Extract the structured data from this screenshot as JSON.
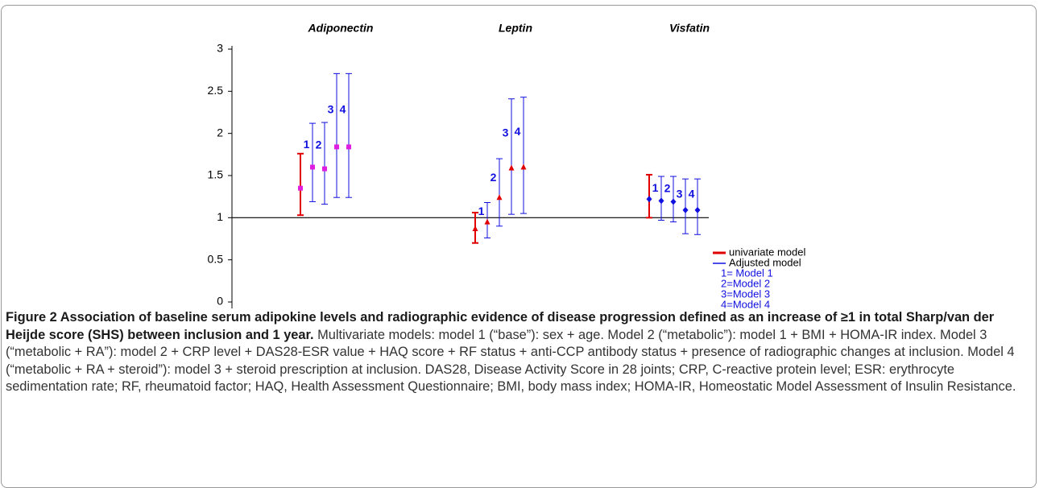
{
  "chart_data": {
    "type": "errorbar",
    "categories": [
      "Adiponectin",
      "Leptin",
      "Visfatin"
    ],
    "markers": [
      "square",
      "triangle",
      "diamond"
    ],
    "marker_colors": [
      "#e01ee0",
      "#e00000",
      "#1010e0"
    ],
    "series": [
      {
        "name": "univariate model",
        "color": "#e00000",
        "values": [
          1.35,
          0.87,
          1.22
        ],
        "lower": [
          1.03,
          0.7,
          1.0
        ],
        "upper": [
          1.76,
          1.06,
          1.51
        ]
      },
      {
        "name": "1= Model 1",
        "tag": "1",
        "color": "#1010e0",
        "values": [
          1.6,
          0.95,
          1.2
        ],
        "lower": [
          1.19,
          0.76,
          0.97
        ],
        "upper": [
          2.12,
          1.18,
          1.49
        ]
      },
      {
        "name": "2=Model 2",
        "tag": "2",
        "color": "#1010e0",
        "values": [
          1.58,
          1.24,
          1.19
        ],
        "lower": [
          1.16,
          0.9,
          0.95
        ],
        "upper": [
          2.13,
          1.7,
          1.49
        ]
      },
      {
        "name": "3=Model 3",
        "tag": "3",
        "color": "#1010e0",
        "values": [
          1.84,
          1.59,
          1.09
        ],
        "lower": [
          1.24,
          1.04,
          0.81
        ],
        "upper": [
          2.71,
          2.41,
          1.46
        ]
      },
      {
        "name": "4=Model 4",
        "tag": "4",
        "color": "#1010e0",
        "values": [
          1.84,
          1.6,
          1.09
        ],
        "lower": [
          1.24,
          1.05,
          0.8
        ],
        "upper": [
          2.71,
          2.43,
          1.46
        ]
      }
    ],
    "adjusted_legend": {
      "name": "Adjusted model",
      "color": "#1010e0"
    },
    "reference_line": 1,
    "ylim": [
      0,
      3
    ],
    "yticks": [
      0,
      0.5,
      1,
      1.5,
      2,
      2.5,
      3
    ]
  },
  "caption": {
    "title": "Figure 2 Association of baseline serum adipokine levels and radiographic evidence of disease progression defined as an increase of ≥1 in total Sharp/van der Heijde score (SHS) between inclusion and 1 year.",
    "text": "Multivariate models: model 1 (“base”): sex + age. Model 2 (“metabolic”): model 1 + BMI + HOMA-IR index. Model 3 (“metabolic + RA”): model 2 + CRP level + DAS28-ESR value + HAQ score + RF status + anti-CCP antibody status + presence of radiographic changes at inclusion. Model 4 (“metabolic + RA + steroid”): model 3 + steroid prescription at inclusion. DAS28, Disease Activity Score in 28 joints; CRP, C-reactive protein level; ESR: erythrocyte sedimentation rate; RF, rheumatoid factor; HAQ, Health Assessment Questionnaire; BMI, body mass index; HOMA-IR, Homeostatic Model Assessment of Insulin Resistance."
  }
}
